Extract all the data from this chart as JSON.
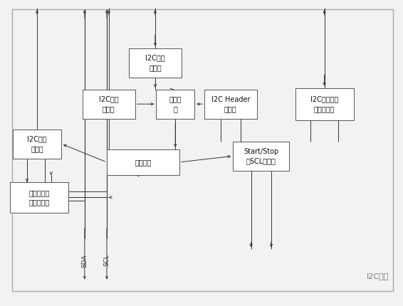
{
  "bg": "#f2f2f2",
  "fc": "#ffffff",
  "ec": "#555555",
  "ac": "#333333",
  "tc": "#111111",
  "border_ec": "#aaaaaa",
  "label_color": "#777777",
  "fs": 7,
  "fig_label": "I2C接口",
  "sda": "SDA",
  "scl": "SCL",
  "blocks": {
    "addr_reg": [
      0.385,
      0.795,
      0.13,
      0.095,
      "I2C地址\n寄存器"
    ],
    "ctrl_reg": [
      0.27,
      0.66,
      0.13,
      0.095,
      "I2C控制\n寄存器"
    ],
    "addr_cmp": [
      0.435,
      0.66,
      0.095,
      0.095,
      "地址比\n较"
    ],
    "header_reg": [
      0.572,
      0.66,
      0.13,
      0.095,
      "I2C Header\n寄存器"
    ],
    "data_reg": [
      0.805,
      0.66,
      0.145,
      0.105,
      "I2C数据寄存\n器及处理器"
    ],
    "state_reg": [
      0.092,
      0.53,
      0.12,
      0.095,
      "I2C状态\n寄存器"
    ],
    "start_stop": [
      0.648,
      0.49,
      0.14,
      0.095,
      "Start/Stop\n及SCL发生器"
    ],
    "main_fsm": [
      0.355,
      0.47,
      0.18,
      0.085,
      "主状态机"
    ],
    "arb_detect": [
      0.097,
      0.355,
      0.145,
      0.1,
      "仲裁及起始\n停止位检测"
    ]
  }
}
